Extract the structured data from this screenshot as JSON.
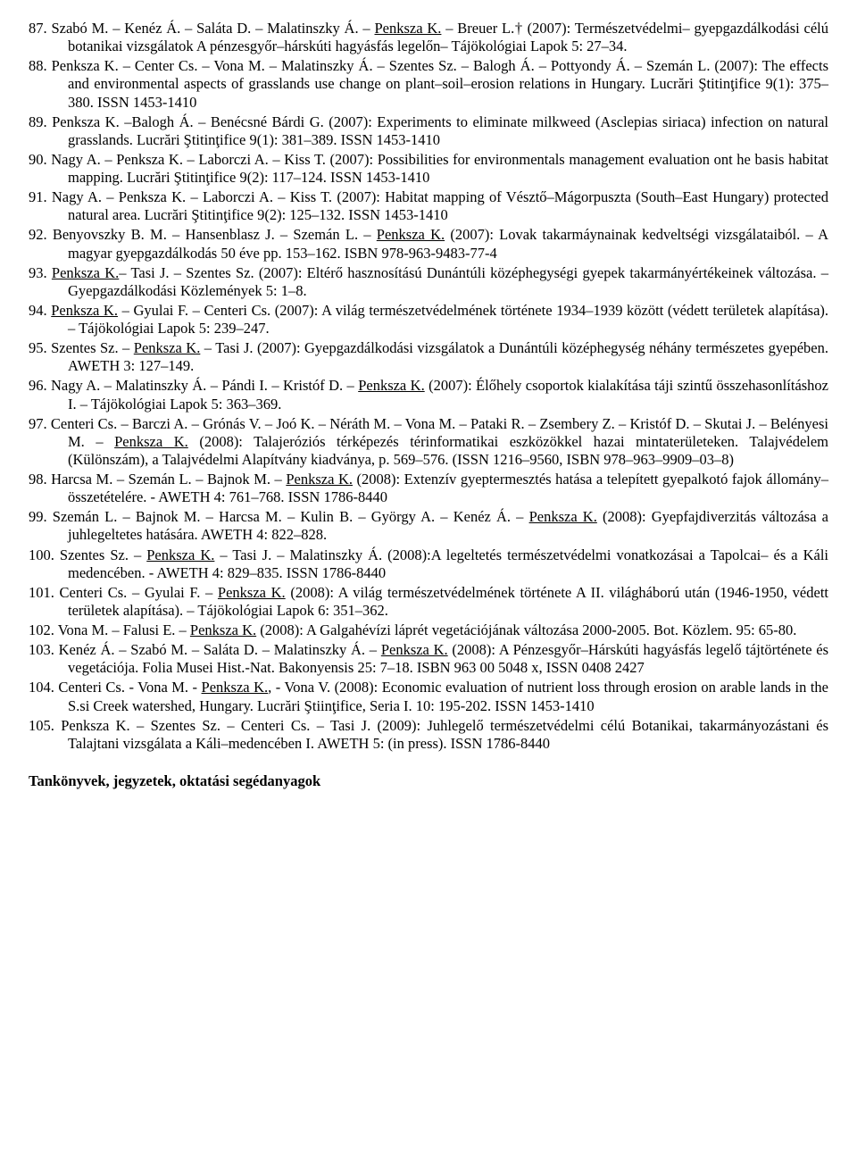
{
  "refs": [
    {
      "num": "87.",
      "html": "Szabó M. – Kenéz Á. – Saláta D. – Malatinszky Á. – <span class='u'>Penksza K.</span> – Breuer L.† (2007): Természetvédelmi– gyepgazdálkodási célú botanikai vizsgálatok A pénzesgyőr–hárskúti hagyásfás legelőn– Tájökológiai Lapok 5: 27–34."
    },
    {
      "num": "88.",
      "html": "Penksza K. – Center Cs. – Vona M. – Malatinszky Á. – Szentes Sz. – Balogh Á. – Pottyondy Á. – Szemán L. (2007): The effects and environmental aspects of grasslands use change on plant–soil–erosion relations in Hungary. Lucrări Ştitinţifice 9(1): 375–380. ISSN 1453-1410"
    },
    {
      "num": "89.",
      "html": "Penksza K. –Balogh Á. – Benécsné Bárdi G. (2007): Experiments to eliminate milkweed (Asclepias siriaca) infection on natural grasslands. Lucrări Ştitinţifice 9(1): 381–389. ISSN 1453-1410"
    },
    {
      "num": "90.",
      "html": "Nagy A. – Penksza K. – Laborczi A. – Kiss T. (2007): Possibilities for environmentals management evaluation ont he basis habitat mapping. Lucrări Ştitinţifice 9(2): 117–124. ISSN 1453-1410"
    },
    {
      "num": "91.",
      "html": "Nagy A. – Penksza K. – Laborczi A. – Kiss T. (2007): Habitat mapping of Vésztő–Mágorpuszta (South–East Hungary) protected natural area. Lucrări Ştitinţifice 9(2): 125–132. ISSN 1453-1410"
    },
    {
      "num": "92.",
      "html": "Benyovszky B. M. – Hansenblasz J. – Szemán L. – <span class='u'>Penksza K.</span> (2007): Lovak takarmáynainak kedveltségi vizsgálataiból. – A magyar gyepgazdálkodás 50 éve pp. 153–162. ISBN 978-963-9483-77-4"
    },
    {
      "num": "93.",
      "html": "<span class='u'>Penksza K.</span>– Tasi J. – Szentes Sz. (2007): Eltérő hasznosítású Dunántúli középhegységi gyepek takarmányértékeinek változása. – Gyepgazdálkodási Közlemények 5: 1–8."
    },
    {
      "num": "94.",
      "html": "<span class='u'>Penksza K.</span> – Gyulai F. – Centeri Cs. (2007): A világ természetvédelmének története 1934–1939 között (védett területek alapítása). – Tájökológiai Lapok 5: 239–247."
    },
    {
      "num": "95.",
      "html": " Szentes Sz. – <span class='u'>Penksza K.</span> – Tasi J. (2007): Gyepgazdálkodási vizsgálatok a Dunántúli középhegység néhány természetes gyepében. AWETH 3: 127–149."
    },
    {
      "num": "96.",
      "html": " Nagy A. – Malatinszky Á. – Pándi I. – Kristóf D. – <span class='u'>Penksza K.</span> (2007): Élőhely csoportok kialakítása táji szintű összehasonlításhoz I. – Tájökológiai Lapok 5: 363–369."
    },
    {
      "num": "97.",
      "html": "Centeri Cs. – Barczi A. – Grónás V. – Joó K. – Néráth M. – Vona M. – Pataki R. – Zsembery Z. – Kristóf D. – Skutai J. – Belényesi M. – <span class='u'>Penksza K.</span> (2008): Talajeróziós térképezés térinformatikai eszközökkel hazai mintaterületeken. Talajvédelem (Különszám), a Talajvédelmi Alapítvány kiadványa, p. 569–576. (ISSN 1216–9560, ISBN 978–963–9909–03–8)"
    },
    {
      "num": "98.",
      "html": "Harcsa M. – Szemán L. – Bajnok M. – <span class='u'>Penksza K.</span> (2008): Extenzív gyeptermesztés hatása a telepített gyepalkotó fajok állomány–összetételére. - AWETH 4: 761–768. ISSN 1786-8440"
    },
    {
      "num": "99.",
      "html": "Szemán L. – Bajnok M. – Harcsa M. – Kulin B. – György A. – Kenéz Á. – <span class='u'>Penksza K.</span> (2008): Gyepfajdiverzitás változása a juhlegeltetes hatására. AWETH 4: 822–828."
    },
    {
      "num": "100.",
      "html": " Szentes Sz. – <span class='u'>Penksza K.</span> – Tasi J. – Malatinszky Á. (2008):A legeltetés természetvédelmi vonatkozásai a Tapolcai– és a Káli medencében. - AWETH 4: 829–835. ISSN 1786-8440"
    },
    {
      "num": "101.",
      "html": " Centeri Cs. – Gyulai F. – <span class='u'>Penksza K.</span> (2008): A világ természetvédelmének története A II. világháború után (1946-1950, védett területek alapítása). – Tájökológiai Lapok 6: 351–362."
    },
    {
      "num": "102.",
      "html": " Vona M. – Falusi E. – <span class='u'>Penksza K.</span> (2008): A Galgahévízi láprét vegetációjának változása 2000-2005. Bot. Közlem. 95: 65-80."
    },
    {
      "num": "103.",
      "html": " Kenéz Á. – Szabó M. – Saláta D. – Malatinszky Á. – <span class='u'>Penksza K.</span> (2008): A Pénzesgyőr–Hárskúti hagyásfás legelő tájtörténete és vegetációja. Folia Musei Hist.-Nat. Bakonyensis 25: 7–18. ISBN 963 00 5048 x, ISSN 0408 2427"
    },
    {
      "num": "104.",
      "html": " Centeri Cs. - Vona M. - <span class='u'>Penksza K.</span>, - Vona V. (2008): Economic evaluation of nutrient loss through erosion on arable lands in the S.si Creek watershed, Hungary. Lucrări Ştiinţifice, Seria I. 10: 195-202. ISSN 1453-1410"
    },
    {
      "num": "105.",
      "html": " Penksza K. – Szentes Sz. – Centeri Cs. – Tasi J. (2009): Juhlegelő természetvédelmi célú Botanikai, takarmányozástani és Talajtani vizsgálata a Káli–medencében I. AWETH 5: (in press). ISSN 1786-8440"
    }
  ],
  "section_heading": "Tankönyvek, jegyzetek, oktatási segédanyagok"
}
